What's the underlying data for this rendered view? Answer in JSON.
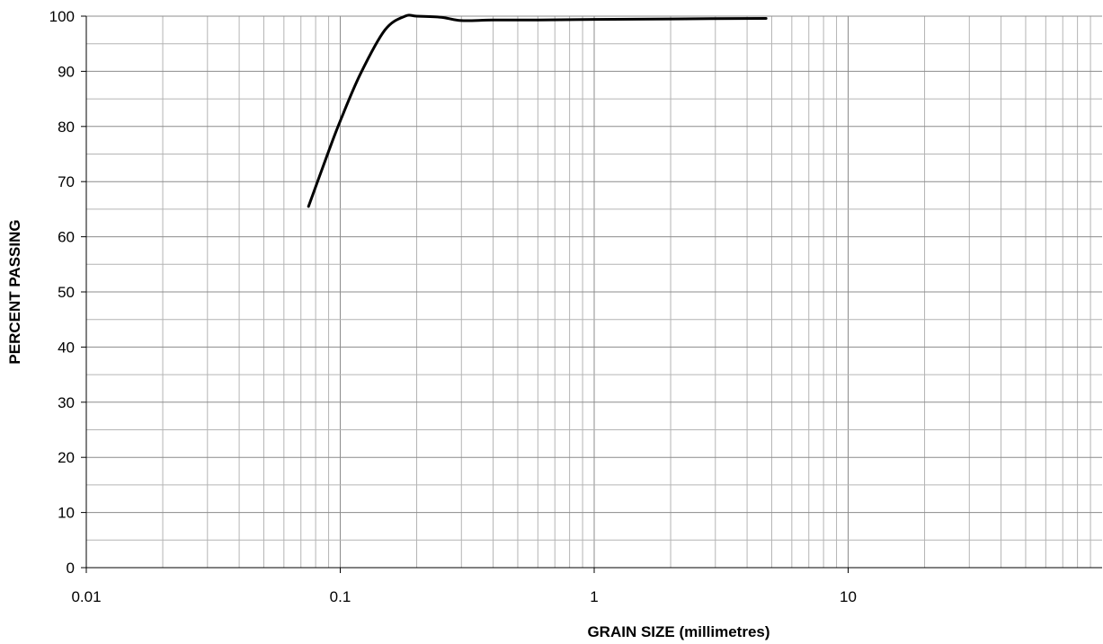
{
  "chart_data": {
    "type": "line",
    "title": "",
    "xlabel": "GRAIN SIZE (millimetres)",
    "ylabel": "PERCENT PASSING",
    "x_scale": "log",
    "xlim": [
      0.01,
      100
    ],
    "ylim": [
      0,
      100
    ],
    "x_ticks": [
      {
        "value": 0.01,
        "label": "0.01"
      },
      {
        "value": 0.1,
        "label": "0.1"
      },
      {
        "value": 1,
        "label": "1"
      },
      {
        "value": 10,
        "label": "10"
      }
    ],
    "y_ticks": [
      {
        "value": 0,
        "label": "0"
      },
      {
        "value": 10,
        "label": "10"
      },
      {
        "value": 20,
        "label": "20"
      },
      {
        "value": 30,
        "label": "30"
      },
      {
        "value": 40,
        "label": "40"
      },
      {
        "value": 50,
        "label": "50"
      },
      {
        "value": 60,
        "label": "60"
      },
      {
        "value": 70,
        "label": "70"
      },
      {
        "value": 80,
        "label": "80"
      },
      {
        "value": 90,
        "label": "90"
      },
      {
        "value": 100,
        "label": "100"
      }
    ],
    "grid": true,
    "legend": "none",
    "series": [
      {
        "color": "#000000",
        "x": [
          0.075,
          0.09,
          0.1,
          0.12,
          0.15,
          0.18,
          0.2,
          0.25,
          0.3,
          0.4,
          0.6,
          1.0,
          2.0,
          4.75
        ],
        "y": [
          65.5,
          75.5,
          81,
          89.5,
          97.5,
          100,
          100,
          99.8,
          99.2,
          99.3,
          99.3,
          99.4,
          99.5,
          99.6
        ]
      }
    ],
    "colors": {
      "gridline": "#b4b4b4",
      "major_gridline": "#8c8c8c",
      "axis": "#000000",
      "line": "#000000"
    }
  }
}
